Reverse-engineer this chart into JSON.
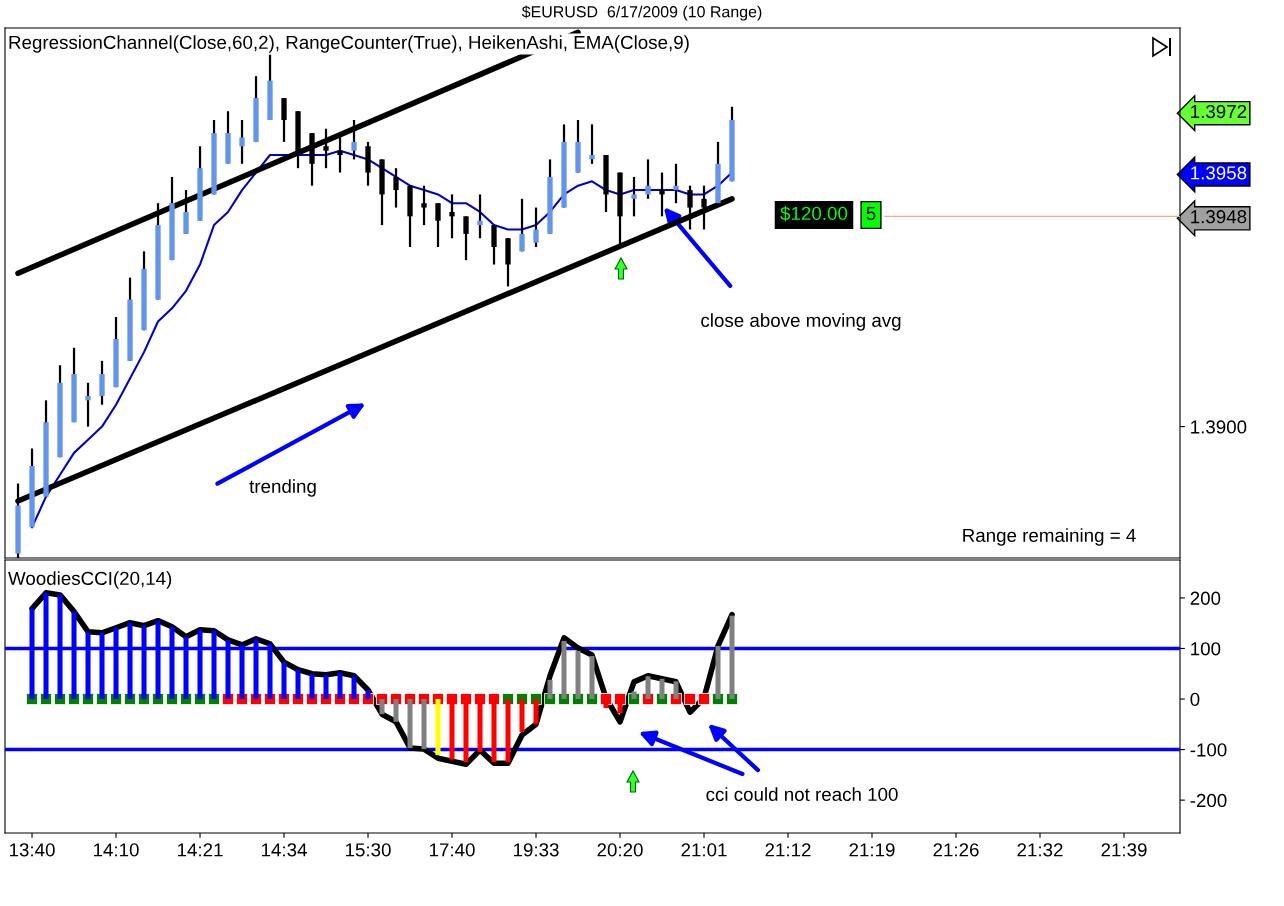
{
  "chart_data": [
    {
      "type": "candlestick",
      "title": "$EURUSD  6/17/2009 (10 Range)",
      "subtitle": "RegressionChannel(Close,60,2), RangeCounter(True), HeikenAshi, EMA(Close,9)",
      "categories": [
        null,
        null,
        null,
        null,
        null,
        null,
        null,
        null,
        null,
        null,
        null,
        null,
        null,
        null,
        null,
        null,
        null,
        null,
        null,
        null,
        null,
        null,
        null,
        null,
        null,
        null,
        null,
        null,
        null,
        null,
        null,
        null,
        null,
        null,
        null,
        null,
        null,
        null,
        null,
        null,
        null,
        null,
        null,
        null,
        null,
        null,
        null,
        null,
        null,
        null,
        null,
        null,
        null,
        null,
        null,
        null,
        null,
        null,
        null,
        null,
        null,
        null,
        null,
        null,
        null,
        null,
        null,
        null,
        null,
        null,
        null,
        null,
        null,
        null,
        null,
        null,
        null,
        null,
        null,
        null,
        null,
        null,
        null
      ],
      "ohlc": [
        [
          1.3871,
          1.3887,
          1.387,
          1.3882
        ],
        [
          1.3877,
          1.3895,
          1.3877,
          1.3891
        ],
        [
          1.3884,
          1.3906,
          1.3884,
          1.3901
        ],
        [
          1.3893,
          1.3914,
          1.3893,
          1.391
        ],
        [
          1.3901,
          1.3918,
          1.3901,
          1.3912
        ],
        [
          1.3906,
          1.391,
          1.39,
          1.3907
        ],
        [
          1.3907,
          1.3915,
          1.3905,
          1.3912
        ],
        [
          1.3909,
          1.3925,
          1.3909,
          1.392
        ],
        [
          1.3915,
          1.3934,
          1.3915,
          1.3929
        ],
        [
          1.3922,
          1.394,
          1.3922,
          1.3936
        ],
        [
          1.3929,
          1.3951,
          1.3929,
          1.3946
        ],
        [
          1.3938,
          1.3957,
          1.3938,
          1.3951
        ],
        [
          1.3944,
          1.3954,
          1.3944,
          1.3949
        ],
        [
          1.3947,
          1.3964,
          1.3947,
          1.3959
        ],
        [
          1.3953,
          1.397,
          1.3953,
          1.3967
        ],
        [
          1.396,
          1.3972,
          1.396,
          1.3967
        ],
        [
          1.3964,
          1.397,
          1.396,
          1.3966
        ],
        [
          1.3965,
          1.398,
          1.3965,
          1.3975
        ],
        [
          1.397,
          1.3985,
          1.397,
          1.3979
        ],
        [
          1.3975,
          1.3975,
          1.3965,
          1.397
        ],
        [
          1.3972,
          1.3972,
          1.3959,
          1.3962
        ],
        [
          1.3967,
          1.3967,
          1.3955,
          1.396
        ],
        [
          1.3964,
          1.3968,
          1.3959,
          1.3963
        ],
        [
          1.3963,
          1.3967,
          1.3958,
          1.3962
        ],
        [
          1.3963,
          1.397,
          1.3961,
          1.3965
        ],
        [
          1.3964,
          1.3965,
          1.3955,
          1.3958
        ],
        [
          1.3961,
          1.3961,
          1.3946,
          1.3953
        ],
        [
          1.3957,
          1.3959,
          1.395,
          1.3954
        ],
        [
          1.3955,
          1.3955,
          1.3941,
          1.3948
        ],
        [
          1.3951,
          1.3955,
          1.3946,
          1.395
        ],
        [
          1.3951,
          1.3951,
          1.3941,
          1.3947
        ],
        [
          1.3949,
          1.3953,
          1.3943,
          1.3948
        ],
        [
          1.3948,
          1.3948,
          1.3938,
          1.3944
        ],
        [
          1.3946,
          1.3953,
          1.3943,
          1.3947
        ],
        [
          1.3946,
          1.3946,
          1.3937,
          1.3941
        ],
        [
          1.3943,
          1.3943,
          1.3932,
          1.3937
        ],
        [
          1.394,
          1.3952,
          1.394,
          1.3944
        ],
        [
          1.3942,
          1.395,
          1.3941,
          1.3945
        ],
        [
          1.3944,
          1.3961,
          1.3944,
          1.3957
        ],
        [
          1.395,
          1.3969,
          1.395,
          1.3965
        ],
        [
          1.3958,
          1.397,
          1.3958,
          1.3965
        ],
        [
          1.3961,
          1.3969,
          1.396,
          1.3962
        ],
        [
          1.3962,
          1.3962,
          1.3949,
          1.3953
        ],
        [
          1.3958,
          1.3958,
          1.3941,
          1.3948
        ],
        [
          1.3952,
          1.3957,
          1.3948,
          1.3953
        ],
        [
          1.3953,
          1.3961,
          1.3952,
          1.3955
        ],
        [
          1.3954,
          1.3958,
          1.3948,
          1.3953
        ],
        [
          1.3954,
          1.396,
          1.3951,
          1.3955
        ],
        [
          1.3954,
          1.3955,
          1.3945,
          1.395
        ],
        [
          1.3952,
          1.3955,
          1.3945,
          1.395
        ],
        [
          1.3951,
          1.3965,
          1.3951,
          1.396
        ],
        [
          1.3956,
          1.3973,
          1.3956,
          1.397
        ],
        null,
        null,
        null,
        null,
        null,
        null,
        null,
        null,
        null,
        null,
        null,
        null,
        null,
        null,
        null,
        null,
        null,
        null,
        null,
        null,
        null,
        null,
        null,
        null,
        null,
        null,
        null,
        null,
        null,
        null,
        null
      ],
      "colors": [
        "#6495ed",
        "#6495ed",
        "#6495ed",
        "#6495ed",
        "#6495ed",
        "#6495ed",
        "#6495ed",
        "#6495ed",
        "#6495ed",
        "#6495ed",
        "#6495ed",
        "#6495ed",
        "#6495ed",
        "#6495ed",
        "#6495ed",
        "#6495ed",
        "#6495ed",
        "#6495ed",
        "#6495ed",
        "#000000",
        "#000000",
        "#000000",
        "#000000",
        "#000000",
        "#6495ed",
        "#000000",
        "#000000",
        "#000000",
        "#000000",
        "#000000",
        "#000000",
        "#000000",
        "#000000",
        "#6495ed",
        "#000000",
        "#000000",
        "#6495ed",
        "#6495ed",
        "#6495ed",
        "#6495ed",
        "#6495ed",
        "#6495ed",
        "#000000",
        "#000000",
        "#6495ed",
        "#6495ed",
        "#000000",
        "#6495ed",
        "#000000",
        "#000000",
        "#6495ed",
        "#6495ed",
        null,
        null,
        null,
        null,
        null,
        null,
        null,
        null,
        null,
        null,
        null,
        null,
        null,
        null,
        null,
        null,
        null,
        null,
        null,
        null,
        null,
        null,
        null,
        null,
        null,
        null,
        null,
        null,
        null,
        null,
        null
      ],
      "series": [
        {
          "type": "line",
          "color": "#0000cc",
          "values": [
            null,
            1.3877,
            1.3884,
            1.3889,
            1.3894,
            1.3897,
            1.39,
            1.3905,
            1.3911,
            1.3917,
            1.3924,
            1.3927,
            1.3931,
            1.3937,
            1.3946,
            1.3949,
            1.3954,
            1.3958,
            1.3962,
            1.3962,
            1.3962,
            1.3962,
            1.3962,
            1.3963,
            1.3962,
            1.3961,
            1.3959,
            1.3957,
            1.3955,
            1.3954,
            1.3953,
            1.3951,
            1.3951,
            1.3949,
            1.3946,
            1.3945,
            1.3945,
            1.3946,
            1.3949,
            1.3953,
            1.3955,
            1.3956,
            1.3954,
            1.3953,
            1.3954,
            1.3954,
            1.3954,
            1.3954,
            1.3953,
            1.3953,
            1.3955,
            1.3958,
            null,
            null,
            null,
            null,
            null,
            null,
            null,
            null,
            null,
            null,
            null,
            null,
            null,
            null,
            null,
            null,
            null,
            null,
            null,
            null,
            null,
            null,
            null,
            null,
            null,
            null,
            null,
            null,
            null,
            null,
            null
          ]
        },
        {
          "type": "line",
          "color": "#000000",
          "values": [
            1.3935,
            null,
            null,
            null,
            null,
            null,
            null,
            null,
            null,
            null,
            null,
            null,
            null,
            null,
            null,
            null,
            null,
            null,
            null,
            null,
            null,
            null,
            null,
            null,
            null,
            null,
            null,
            null,
            null,
            null,
            null,
            null,
            null,
            null,
            null,
            null,
            null,
            null,
            null,
            null,
            1.399,
            null,
            null,
            null,
            null,
            null,
            null,
            null,
            null,
            null,
            null,
            null,
            null,
            null,
            null,
            null,
            null,
            null,
            null,
            null,
            null,
            null,
            null,
            null,
            null,
            null,
            null,
            null,
            null,
            null,
            null,
            null,
            null,
            null,
            null,
            null,
            null,
            null,
            null,
            null,
            null,
            null,
            null
          ]
        },
        {
          "type": "line",
          "color": "#000000",
          "values": [
            1.3883,
            null,
            null,
            null,
            null,
            null,
            null,
            null,
            null,
            null,
            null,
            null,
            null,
            null,
            null,
            null,
            null,
            null,
            null,
            null,
            null,
            null,
            null,
            null,
            null,
            null,
            null,
            null,
            null,
            null,
            null,
            null,
            null,
            null,
            null,
            null,
            null,
            null,
            null,
            null,
            null,
            null,
            null,
            null,
            null,
            null,
            null,
            null,
            null,
            null,
            null,
            1.3952,
            null,
            null,
            null,
            null,
            null,
            null,
            null,
            null,
            null,
            null,
            null,
            null,
            null,
            null,
            null,
            null,
            null,
            null,
            null,
            null,
            null,
            null,
            null,
            null,
            null,
            null,
            null,
            null,
            null,
            null,
            null
          ]
        }
      ],
      "ylim": [
        1.387,
        1.3991
      ],
      "yticks": [
        {
          "value": 1.39,
          "label": "1.3900"
        },
        {
          "value": 1.3948,
          "label": "1.3948"
        },
        {
          "value": 1.3958,
          "label": "1.3958"
        },
        {
          "value": 1.3972,
          "label": "1.3972"
        }
      ],
      "ref_lines": [
        {
          "axis": "y",
          "value": 1.3948,
          "color": "#f4a582"
        }
      ],
      "annotations": [
        "trending",
        "close above moving avg",
        "$120.00",
        "5",
        "Range remaining = 4"
      ],
      "tick_labels": "y",
      "grid": false,
      "legend": false
    },
    {
      "type": "bar",
      "title": "WoodiesCCI(20,14)",
      "categories": [
        null,
        "13:40",
        null,
        null,
        null,
        null,
        null,
        "14:10",
        null,
        null,
        null,
        null,
        null,
        "14:21",
        null,
        null,
        null,
        null,
        null,
        "14:34",
        null,
        null,
        null,
        null,
        null,
        "15:30",
        null,
        null,
        null,
        null,
        null,
        "17:40",
        null,
        null,
        null,
        null,
        null,
        "19:33",
        null,
        null,
        null,
        null,
        null,
        "20:20",
        null,
        null,
        null,
        null,
        null,
        "21:01",
        null,
        null,
        null,
        null,
        null,
        "21:12",
        null,
        null,
        null,
        null,
        null,
        "21:19",
        null,
        null,
        null,
        null,
        null,
        "21:26",
        null,
        null,
        null,
        null,
        null,
        "21:32",
        null,
        null,
        null,
        null,
        null,
        "21:39",
        null,
        null,
        null
      ],
      "series": [
        {
          "type": "bar",
          "values": [
            null,
            179,
            210,
            206,
            173,
            133,
            131,
            141,
            151,
            145,
            155,
            143,
            123,
            137,
            135,
            117,
            107,
            119,
            109,
            73,
            58,
            50,
            48,
            52,
            46,
            18,
            -30,
            -45,
            -97,
            -99,
            -111,
            -120,
            -125,
            -105,
            -125,
            -125,
            -65,
            -50,
            38,
            115,
            95,
            85,
            -18,
            -28,
            15,
            45,
            40,
            35,
            -10,
            null,
            105,
            165,
            null,
            null,
            null,
            null,
            null,
            null,
            null,
            null,
            null,
            null,
            null,
            null,
            null,
            null,
            null,
            null,
            null,
            null,
            null,
            null,
            null,
            null,
            null,
            null,
            null,
            null,
            null,
            null,
            null,
            null,
            null
          ],
          "colors": [
            null,
            "#0000ff",
            "#0000ff",
            "#0000ff",
            "#0000ff",
            "#0000ff",
            "#0000ff",
            "#0000ff",
            "#0000ff",
            "#0000ff",
            "#0000ff",
            "#0000ff",
            "#0000ff",
            "#0000ff",
            "#0000ff",
            "#0000ff",
            "#0000ff",
            "#0000ff",
            "#0000ff",
            "#0000ff",
            "#0000ff",
            "#0000ff",
            "#0000ff",
            "#0000ff",
            "#0000ff",
            "#0000ff",
            "#808080",
            "#808080",
            "#808080",
            "#808080",
            "#ffff00",
            "#ff0000",
            "#ff0000",
            "#ff0000",
            "#ff0000",
            "#ff0000",
            "#ff0000",
            "#ff0000",
            "#808080",
            "#808080",
            "#808080",
            "#808080",
            "#ff0000",
            "#ff0000",
            "#808080",
            "#808080",
            "#808080",
            "#808080",
            "#ff0000",
            "#ff0000",
            "#808080",
            "#808080",
            null,
            null,
            null,
            null,
            null,
            null,
            null,
            null,
            null,
            null,
            null,
            null,
            null,
            null,
            null,
            null,
            null,
            null,
            null,
            null,
            null,
            null,
            null,
            null,
            null,
            null,
            null,
            null,
            null,
            null,
            null
          ]
        },
        {
          "type": "line",
          "color": "#000000",
          "values": [
            null,
            179,
            210,
            206,
            173,
            133,
            131,
            141,
            151,
            145,
            155,
            143,
            123,
            137,
            135,
            117,
            107,
            119,
            109,
            73,
            58,
            50,
            48,
            52,
            46,
            18,
            -30,
            -45,
            -97,
            -99,
            -117,
            -123,
            -129,
            -101,
            -127,
            -127,
            -71,
            -50,
            46,
            121,
            101,
            87,
            2,
            -45,
            34,
            46,
            40,
            34,
            -26,
            2,
            105,
            167,
            null,
            null,
            null,
            null,
            null,
            null,
            null,
            null,
            null,
            null,
            null,
            null,
            null,
            null,
            null,
            null,
            null,
            null,
            null,
            null,
            null,
            null,
            null,
            null,
            null,
            null,
            null,
            null,
            null,
            null,
            null
          ]
        },
        {
          "type": "scatter",
          "marker": "square",
          "values": [
            null,
            0,
            0,
            0,
            0,
            0,
            0,
            0,
            0,
            0,
            0,
            0,
            0,
            0,
            0,
            0,
            0,
            0,
            0,
            0,
            0,
            0,
            0,
            0,
            0,
            0,
            0,
            0,
            0,
            0,
            0,
            0,
            0,
            0,
            0,
            0,
            0,
            0,
            0,
            0,
            0,
            0,
            0,
            0,
            0,
            0,
            0,
            0,
            0,
            0,
            0,
            0,
            null,
            null,
            null,
            null,
            null,
            null,
            null,
            null,
            null,
            null,
            null,
            null,
            null,
            null,
            null,
            null,
            null,
            null,
            null,
            null,
            null,
            null,
            null,
            null,
            null,
            null,
            null,
            null,
            null,
            null,
            null
          ],
          "colors": [
            null,
            "#008000",
            "#008000",
            "#008000",
            "#008000",
            "#008000",
            "#008000",
            "#008000",
            "#008000",
            "#008000",
            "#008000",
            "#008000",
            "#008000",
            "#008000",
            "#008000",
            "#ff0000",
            "#ff0000",
            "#ff0000",
            "#ff0000",
            "#ff0000",
            "#ff0000",
            "#ff0000",
            "#ff0000",
            "#ff0000",
            "#ff0000",
            "#ff0000",
            "#ff0000",
            "#ff0000",
            "#ff0000",
            "#ff0000",
            "#ff0000",
            "#ff0000",
            "#ff0000",
            "#ff0000",
            "#ff0000",
            "#008000",
            "#008000",
            "#008000",
            "#008000",
            "#008000",
            "#008000",
            "#008000",
            "#ff0000",
            "#ff0000",
            "#008000",
            "#ff0000",
            "#008000",
            "#ff0000",
            "#ff0000",
            "#ff0000",
            "#008000",
            "#008000",
            null,
            null,
            null,
            null,
            null,
            null,
            null,
            null,
            null,
            null,
            null,
            null,
            null,
            null,
            null,
            null,
            null,
            null,
            null,
            null,
            null,
            null,
            null,
            null,
            null,
            null,
            null,
            null,
            null,
            null,
            null
          ]
        }
      ],
      "ylim": [
        -265,
        275
      ],
      "yticks": [
        -200,
        -100,
        0,
        100,
        200
      ],
      "ref_lines": [
        {
          "axis": "y",
          "value": 100,
          "color": "#0000ff"
        },
        {
          "axis": "y",
          "value": -100,
          "color": "#0000ff"
        }
      ],
      "annotations": [
        "cci could not reach 100"
      ],
      "grid": false,
      "legend": false
    }
  ]
}
